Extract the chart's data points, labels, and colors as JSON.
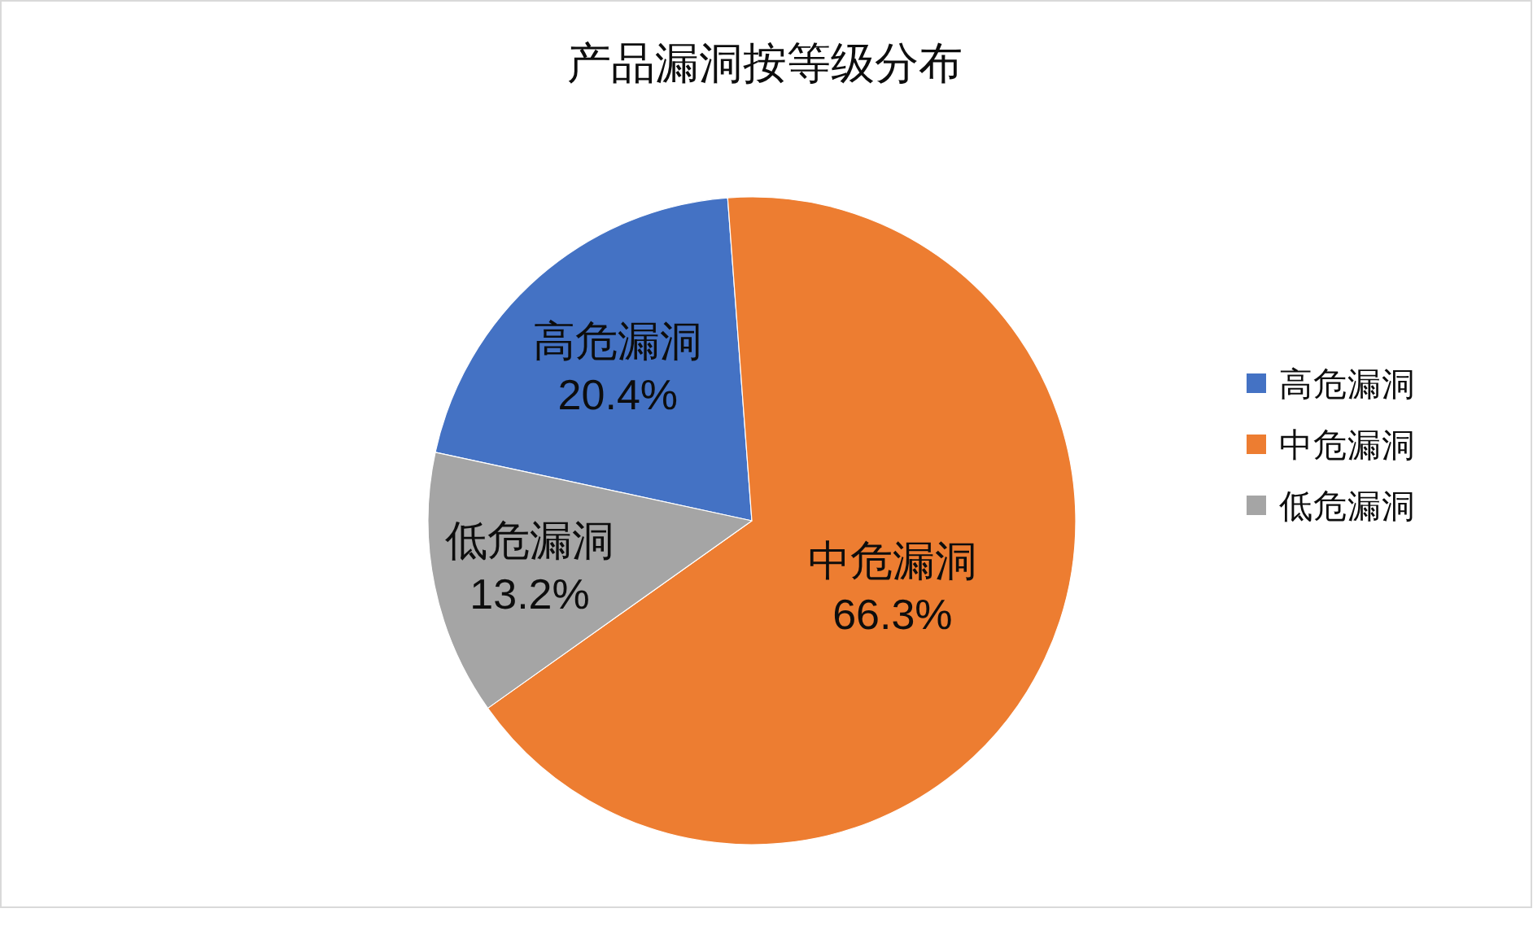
{
  "chart_data": {
    "type": "pie",
    "title": "产品漏洞按等级分布",
    "categories": [
      "高危漏洞",
      "中危漏洞",
      "低危漏洞"
    ],
    "values": [
      20.4,
      66.3,
      13.2
    ],
    "colors": [
      "#4472c4",
      "#ed7d31",
      "#a5a5a5"
    ],
    "value_labels": [
      "20.4%",
      "66.3%",
      "13.2%"
    ],
    "legend": "right"
  }
}
